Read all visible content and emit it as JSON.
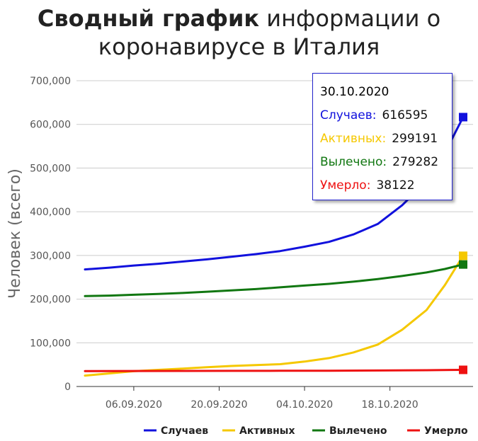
{
  "title": {
    "bold": "Сводный график",
    "rest": "информации о коронавирусе в Италия"
  },
  "tooltip": {
    "date": "30.10.2020",
    "rows": [
      {
        "label": "Случаев:",
        "value": "616595",
        "color": "#1111dd"
      },
      {
        "label": "Активных:",
        "value": "299191",
        "color": "#f5c800"
      },
      {
        "label": "Вылечено:",
        "value": "279282",
        "color": "#117711"
      },
      {
        "label": "Умерло:",
        "value": "38122",
        "color": "#ee1111"
      }
    ]
  },
  "chart_data": {
    "type": "line",
    "title": "Сводный график информации о коронавирусе в Италия",
    "ylabel": "Человек (всего)",
    "xlabel": "",
    "ylim": [
      0,
      700000
    ],
    "yticks": [
      0,
      100000,
      200000,
      300000,
      400000,
      500000,
      600000,
      700000
    ],
    "ytick_labels": [
      "0",
      "100,000",
      "200,000",
      "300,000",
      "400,000",
      "500,000",
      "600,000",
      "700,000"
    ],
    "xlim": [
      "2020-08-29",
      "2020-10-30"
    ],
    "xticks": [
      "2020-09-06",
      "2020-09-20",
      "2020-10-04",
      "2020-10-18"
    ],
    "xtick_labels": [
      "06.09.2020",
      "20.09.2020",
      "04.10.2020",
      "18.10.2020"
    ],
    "grid": true,
    "legend_position": "bottom-right",
    "series": [
      {
        "name": "Случаев",
        "color": "#1111dd",
        "points": [
          [
            "2020-08-29",
            268000
          ],
          [
            "2020-09-02",
            272000
          ],
          [
            "2020-09-06",
            277000
          ],
          [
            "2020-09-10",
            281000
          ],
          [
            "2020-09-14",
            286000
          ],
          [
            "2020-09-18",
            291000
          ],
          [
            "2020-09-22",
            297000
          ],
          [
            "2020-09-26",
            303000
          ],
          [
            "2020-09-30",
            310000
          ],
          [
            "2020-10-04",
            320000
          ],
          [
            "2020-10-08",
            331000
          ],
          [
            "2020-10-12",
            348000
          ],
          [
            "2020-10-16",
            372000
          ],
          [
            "2020-10-20",
            415000
          ],
          [
            "2020-10-24",
            470000
          ],
          [
            "2020-10-27",
            535000
          ],
          [
            "2020-10-30",
            616595
          ]
        ]
      },
      {
        "name": "Активных",
        "color": "#f5c800",
        "points": [
          [
            "2020-08-29",
            25000
          ],
          [
            "2020-09-02",
            30000
          ],
          [
            "2020-09-06",
            35000
          ],
          [
            "2020-09-10",
            38000
          ],
          [
            "2020-09-14",
            41000
          ],
          [
            "2020-09-18",
            44000
          ],
          [
            "2020-09-22",
            47000
          ],
          [
            "2020-09-26",
            49000
          ],
          [
            "2020-09-30",
            51000
          ],
          [
            "2020-10-04",
            57000
          ],
          [
            "2020-10-08",
            65000
          ],
          [
            "2020-10-12",
            78000
          ],
          [
            "2020-10-16",
            96000
          ],
          [
            "2020-10-20",
            130000
          ],
          [
            "2020-10-24",
            175000
          ],
          [
            "2020-10-27",
            232000
          ],
          [
            "2020-10-30",
            299191
          ]
        ]
      },
      {
        "name": "Вылечено",
        "color": "#117711",
        "points": [
          [
            "2020-08-29",
            207000
          ],
          [
            "2020-09-02",
            208000
          ],
          [
            "2020-09-06",
            210000
          ],
          [
            "2020-09-10",
            212000
          ],
          [
            "2020-09-14",
            214000
          ],
          [
            "2020-09-18",
            217000
          ],
          [
            "2020-09-22",
            220000
          ],
          [
            "2020-09-26",
            223000
          ],
          [
            "2020-09-30",
            227000
          ],
          [
            "2020-10-04",
            231000
          ],
          [
            "2020-10-08",
            235000
          ],
          [
            "2020-10-12",
            240000
          ],
          [
            "2020-10-16",
            246000
          ],
          [
            "2020-10-20",
            253000
          ],
          [
            "2020-10-24",
            261000
          ],
          [
            "2020-10-27",
            269000
          ],
          [
            "2020-10-30",
            279282
          ]
        ]
      },
      {
        "name": "Умерло",
        "color": "#ee1111",
        "points": [
          [
            "2020-08-29",
            35400
          ],
          [
            "2020-09-06",
            35500
          ],
          [
            "2020-09-14",
            35600
          ],
          [
            "2020-09-22",
            35800
          ],
          [
            "2020-09-30",
            36000
          ],
          [
            "2020-10-08",
            36200
          ],
          [
            "2020-10-16",
            36600
          ],
          [
            "2020-10-24",
            37300
          ],
          [
            "2020-10-30",
            38122
          ]
        ]
      }
    ]
  }
}
